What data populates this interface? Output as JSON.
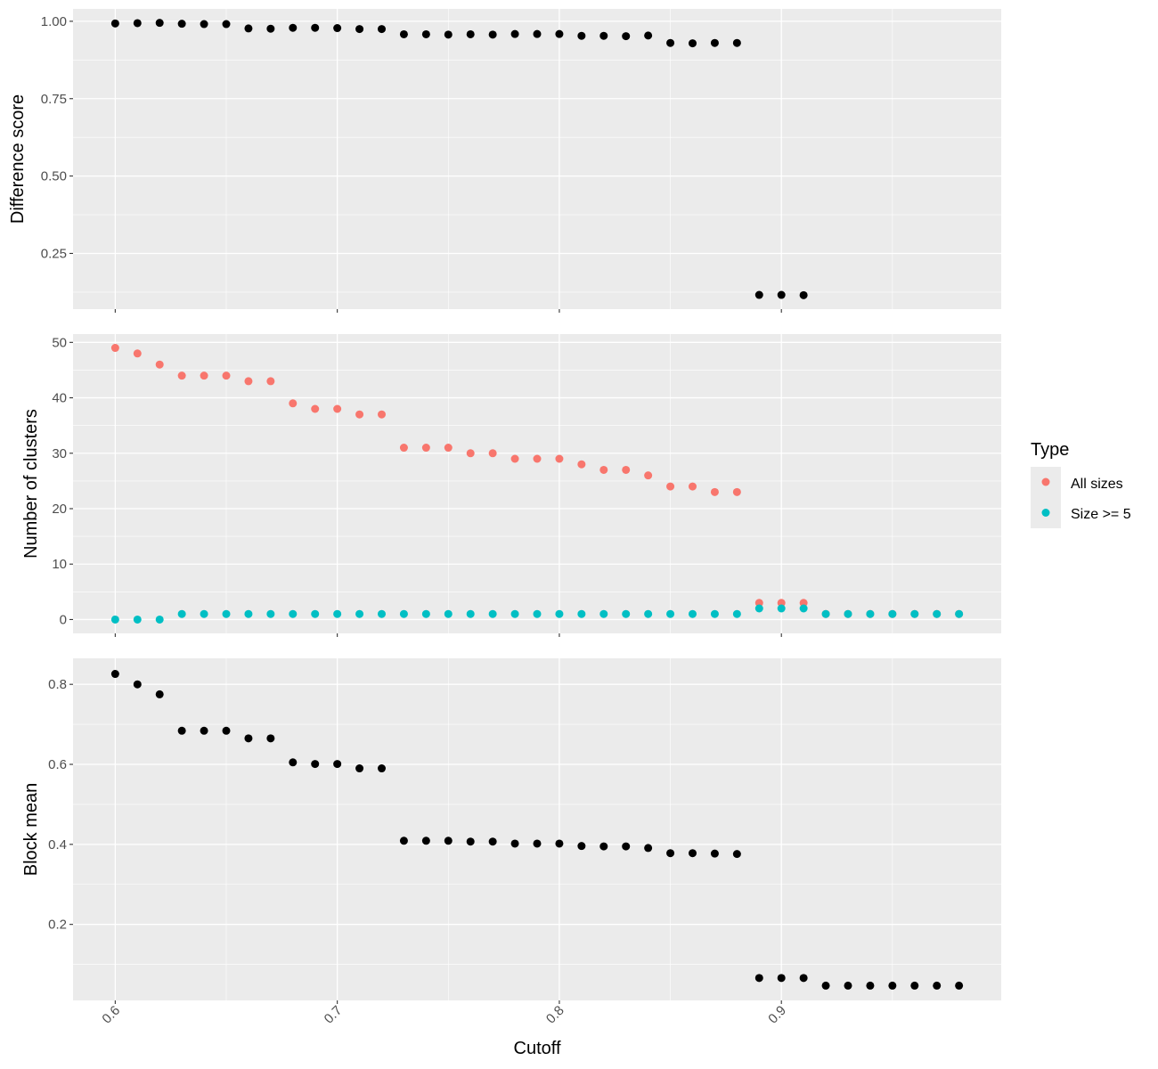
{
  "chart_data": [
    {
      "type": "scatter",
      "panel": "top",
      "ylabel": "Difference score",
      "xlim": [
        0.581,
        0.999
      ],
      "ylim": [
        0.07,
        1.04
      ],
      "x_ticks": [
        0.6,
        0.7,
        0.8,
        0.9
      ],
      "y_ticks": [
        0.25,
        0.5,
        0.75,
        1.0
      ],
      "y_tick_labels": [
        "0.25",
        "0.50",
        "0.75",
        "1.00"
      ],
      "point_color": "#000000",
      "series": [
        {
          "x": [
            0.6,
            0.61,
            0.62,
            0.63,
            0.64,
            0.65,
            0.66,
            0.67,
            0.68,
            0.69,
            0.7,
            0.71,
            0.72,
            0.73,
            0.74,
            0.75,
            0.76,
            0.77,
            0.78,
            0.79,
            0.8,
            0.81,
            0.82,
            0.83,
            0.84,
            0.85,
            0.86,
            0.87,
            0.88,
            0.89,
            0.9,
            0.91
          ],
          "y": [
            0.993,
            0.994,
            0.995,
            0.992,
            0.991,
            0.991,
            0.977,
            0.976,
            0.979,
            0.979,
            0.978,
            0.975,
            0.975,
            0.958,
            0.958,
            0.957,
            0.958,
            0.957,
            0.959,
            0.959,
            0.959,
            0.953,
            0.953,
            0.952,
            0.954,
            0.93,
            0.929,
            0.93,
            0.93,
            0.116,
            0.116,
            0.115
          ]
        }
      ]
    },
    {
      "type": "scatter",
      "panel": "middle",
      "ylabel": "Number of clusters",
      "xlim": [
        0.581,
        0.999
      ],
      "ylim": [
        -2.5,
        51.5
      ],
      "x_ticks": [
        0.6,
        0.7,
        0.8,
        0.9
      ],
      "y_ticks": [
        0,
        10,
        20,
        30,
        40,
        50
      ],
      "y_tick_labels": [
        "0",
        "10",
        "20",
        "30",
        "40",
        "50"
      ],
      "series": [
        {
          "name": "All sizes",
          "color": "#F8766D",
          "x": [
            0.6,
            0.61,
            0.62,
            0.63,
            0.64,
            0.65,
            0.66,
            0.67,
            0.68,
            0.69,
            0.7,
            0.71,
            0.72,
            0.73,
            0.74,
            0.75,
            0.76,
            0.77,
            0.78,
            0.79,
            0.8,
            0.81,
            0.82,
            0.83,
            0.84,
            0.85,
            0.86,
            0.87,
            0.88,
            0.89,
            0.9,
            0.91,
            0.92,
            0.93,
            0.94,
            0.95,
            0.96,
            0.97,
            0.98
          ],
          "y": [
            49,
            48,
            46,
            44,
            44,
            44,
            43,
            43,
            39,
            38,
            38,
            37,
            37,
            31,
            31,
            31,
            30,
            30,
            29,
            29,
            29,
            28,
            27,
            27,
            26,
            24,
            24,
            23,
            23,
            3,
            3,
            3,
            1,
            1,
            1,
            1,
            1,
            1,
            1
          ]
        },
        {
          "name": "Size >= 5",
          "color": "#00BFC4",
          "x": [
            0.6,
            0.61,
            0.62,
            0.63,
            0.64,
            0.65,
            0.66,
            0.67,
            0.68,
            0.69,
            0.7,
            0.71,
            0.72,
            0.73,
            0.74,
            0.75,
            0.76,
            0.77,
            0.78,
            0.79,
            0.8,
            0.81,
            0.82,
            0.83,
            0.84,
            0.85,
            0.86,
            0.87,
            0.88,
            0.89,
            0.9,
            0.91,
            0.92,
            0.93,
            0.94,
            0.95,
            0.96,
            0.97,
            0.98
          ],
          "y": [
            0,
            0,
            0,
            1,
            1,
            1,
            1,
            1,
            1,
            1,
            1,
            1,
            1,
            1,
            1,
            1,
            1,
            1,
            1,
            1,
            1,
            1,
            1,
            1,
            1,
            1,
            1,
            1,
            1,
            2,
            2,
            2,
            1,
            1,
            1,
            1,
            1,
            1,
            1
          ]
        }
      ]
    },
    {
      "type": "scatter",
      "panel": "bottom",
      "ylabel": "Block mean",
      "xlabel": "Cutoff",
      "xlim": [
        0.581,
        0.999
      ],
      "ylim": [
        0.01,
        0.865
      ],
      "x_ticks": [
        0.6,
        0.7,
        0.8,
        0.9
      ],
      "x_tick_labels": [
        "0.6",
        "0.7",
        "0.8",
        "0.9"
      ],
      "y_ticks": [
        0.2,
        0.4,
        0.6,
        0.8
      ],
      "y_tick_labels": [
        "0.2",
        "0.4",
        "0.6",
        "0.8"
      ],
      "point_color": "#000000",
      "series": [
        {
          "x": [
            0.6,
            0.61,
            0.62,
            0.63,
            0.64,
            0.65,
            0.66,
            0.67,
            0.68,
            0.69,
            0.7,
            0.71,
            0.72,
            0.73,
            0.74,
            0.75,
            0.76,
            0.77,
            0.78,
            0.79,
            0.8,
            0.81,
            0.82,
            0.83,
            0.84,
            0.85,
            0.86,
            0.87,
            0.88,
            0.89,
            0.9,
            0.91,
            0.92,
            0.93,
            0.94,
            0.95,
            0.96,
            0.97,
            0.98
          ],
          "y": [
            0.826,
            0.8,
            0.775,
            0.684,
            0.684,
            0.684,
            0.665,
            0.665,
            0.605,
            0.601,
            0.601,
            0.59,
            0.59,
            0.409,
            0.409,
            0.409,
            0.407,
            0.407,
            0.402,
            0.402,
            0.402,
            0.396,
            0.395,
            0.395,
            0.391,
            0.378,
            0.378,
            0.377,
            0.376,
            0.066,
            0.066,
            0.066,
            0.047,
            0.047,
            0.047,
            0.047,
            0.047,
            0.047,
            0.047
          ]
        }
      ]
    }
  ],
  "legend": {
    "title": "Type",
    "entries": [
      {
        "label": "All sizes",
        "color": "#F8766D"
      },
      {
        "label": "Size >= 5",
        "color": "#00BFC4"
      }
    ],
    "placement": "right"
  },
  "colors": {
    "panel_background": "#EBEBEB",
    "grid": "#FFFFFF",
    "axis_text": "#4D4D4D",
    "axis_ticks": "#333333"
  }
}
